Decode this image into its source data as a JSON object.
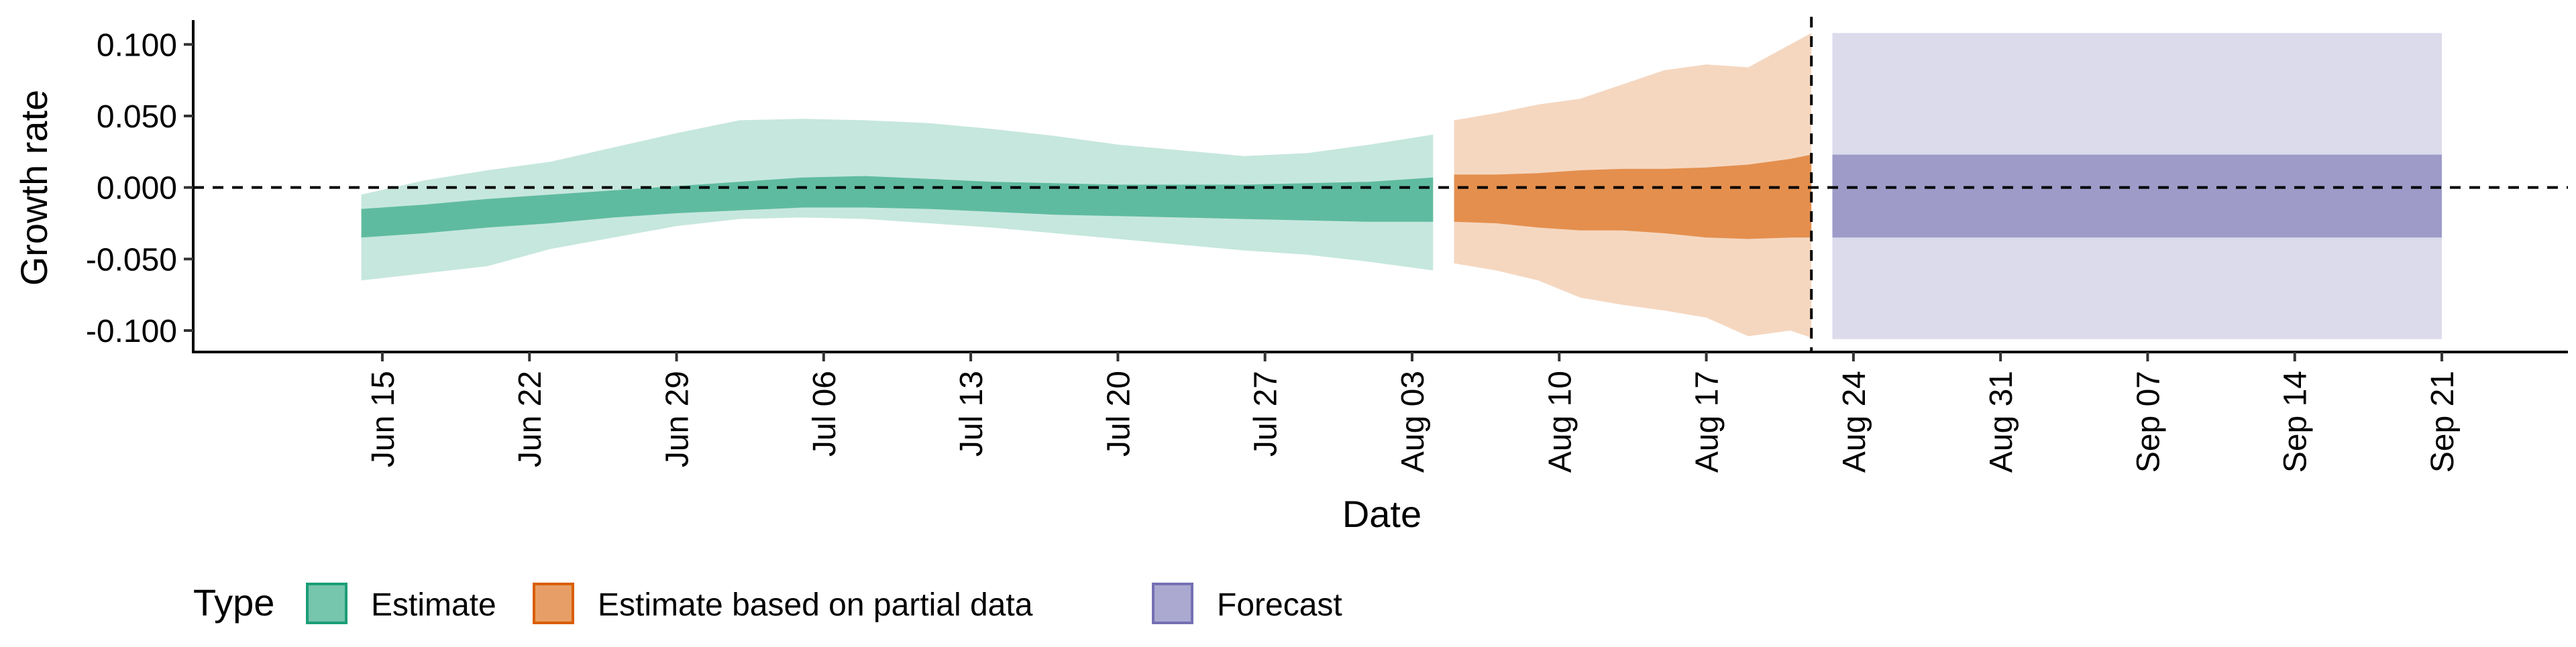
{
  "chart_data": {
    "type": "area",
    "xlabel": "Date",
    "ylabel": "Growth rate",
    "ylim": [
      -0.115,
      0.117
    ],
    "xlim": [
      "2020-06-06",
      "2020-09-27"
    ],
    "x_ticks": [
      "2020-06-15",
      "2020-06-22",
      "2020-06-29",
      "2020-07-06",
      "2020-07-13",
      "2020-07-20",
      "2020-07-27",
      "2020-08-03",
      "2020-08-10",
      "2020-08-17",
      "2020-08-24",
      "2020-08-31",
      "2020-09-07",
      "2020-09-14",
      "2020-09-21"
    ],
    "x_tick_labels": [
      "Jun 15",
      "Jun 22",
      "Jun 29",
      "Jul 06",
      "Jul 13",
      "Jul 20",
      "Jul 27",
      "Aug 03",
      "Aug 10",
      "Aug 17",
      "Aug 24",
      "Aug 31",
      "Sep 07",
      "Sep 14",
      "Sep 21"
    ],
    "y_ticks": [
      -0.1,
      -0.05,
      0,
      0.05,
      0.1
    ],
    "y_tick_labels": [
      "-0.100",
      "-0.050",
      "0.000",
      "0.050",
      "0.100"
    ],
    "reference_lines": {
      "horizontal_y": 0,
      "vertical_x": "2020-08-22",
      "style": "dashed"
    },
    "legend": {
      "title": "Type",
      "position": "bottom",
      "items": [
        {
          "label": "Estimate",
          "color": "#1b9e77"
        },
        {
          "label": "Estimate based on partial data",
          "color": "#d95f02"
        },
        {
          "label": "Forecast",
          "color": "#7570b3"
        }
      ]
    },
    "series": [
      {
        "name": "Estimate",
        "color": "#1b9e77",
        "x": [
          "2020-06-14",
          "2020-06-17",
          "2020-06-20",
          "2020-06-23",
          "2020-06-26",
          "2020-06-29",
          "2020-07-02",
          "2020-07-05",
          "2020-07-08",
          "2020-07-11",
          "2020-07-14",
          "2020-07-17",
          "2020-07-20",
          "2020-07-23",
          "2020-07-26",
          "2020-07-29",
          "2020-08-01",
          "2020-08-04"
        ],
        "outer_upper": [
          -0.005,
          0.005,
          0.012,
          0.018,
          0.028,
          0.038,
          0.047,
          0.048,
          0.047,
          0.045,
          0.041,
          0.036,
          0.03,
          0.026,
          0.022,
          0.024,
          0.03,
          0.037
        ],
        "outer_lower": [
          -0.065,
          -0.06,
          -0.055,
          -0.043,
          -0.035,
          -0.027,
          -0.022,
          -0.021,
          -0.022,
          -0.025,
          -0.028,
          -0.032,
          -0.036,
          -0.04,
          -0.044,
          -0.047,
          -0.052,
          -0.058
        ],
        "inner_upper": [
          -0.015,
          -0.012,
          -0.008,
          -0.005,
          -0.002,
          0.001,
          0.004,
          0.007,
          0.008,
          0.006,
          0.004,
          0.003,
          0.002,
          0.002,
          0.002,
          0.003,
          0.004,
          0.007
        ],
        "inner_lower": [
          -0.035,
          -0.032,
          -0.028,
          -0.025,
          -0.021,
          -0.018,
          -0.016,
          -0.014,
          -0.014,
          -0.015,
          -0.017,
          -0.019,
          -0.02,
          -0.021,
          -0.022,
          -0.023,
          -0.024,
          -0.024
        ]
      },
      {
        "name": "Estimate based on partial data",
        "color": "#d95f02",
        "x": [
          "2020-08-05",
          "2020-08-07",
          "2020-08-09",
          "2020-08-11",
          "2020-08-13",
          "2020-08-15",
          "2020-08-17",
          "2020-08-19",
          "2020-08-21",
          "2020-08-22"
        ],
        "outer_upper": [
          0.047,
          0.052,
          0.058,
          0.062,
          0.072,
          0.082,
          0.086,
          0.084,
          0.1,
          0.108
        ],
        "outer_lower": [
          -0.053,
          -0.058,
          -0.065,
          -0.077,
          -0.082,
          -0.086,
          -0.091,
          -0.104,
          -0.1,
          -0.105
        ],
        "inner_upper": [
          0.009,
          0.009,
          0.01,
          0.012,
          0.013,
          0.013,
          0.014,
          0.016,
          0.02,
          0.023
        ],
        "inner_lower": [
          -0.024,
          -0.025,
          -0.028,
          -0.03,
          -0.03,
          -0.032,
          -0.035,
          -0.036,
          -0.035,
          -0.035
        ]
      },
      {
        "name": "Forecast",
        "color": "#7570b3",
        "x": [
          "2020-08-23",
          "2020-09-21"
        ],
        "outer_upper": [
          0.108,
          0.108
        ],
        "outer_lower": [
          -0.106,
          -0.106
        ],
        "inner_upper": [
          0.023,
          0.023
        ],
        "inner_lower": [
          -0.035,
          -0.035
        ]
      }
    ]
  }
}
